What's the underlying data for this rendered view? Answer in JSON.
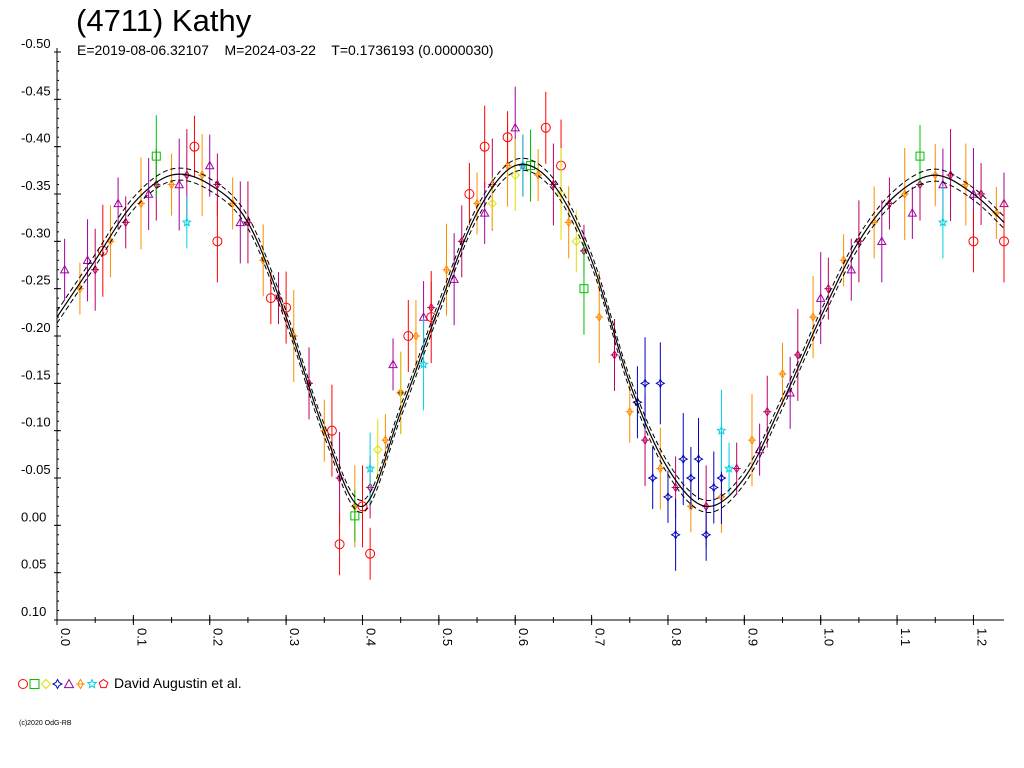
{
  "title": "(4711) Kathy",
  "subtitle": {
    "epoch": "E=2019-08-06.32107",
    "modified": "M=2024-03-22",
    "period": "T=0.1736193 (0.0000030)"
  },
  "legend": {
    "label": "David Augustin et al.",
    "markers": [
      {
        "shape": "circle",
        "color": "#ff0000"
      },
      {
        "shape": "square",
        "color": "#00c000"
      },
      {
        "shape": "diamond",
        "color": "#e0e000"
      },
      {
        "shape": "star4",
        "color": "#0000c0"
      },
      {
        "shape": "triangle",
        "color": "#a000a0"
      },
      {
        "shape": "diamond-cross",
        "color": "#ff8c00"
      },
      {
        "shape": "star",
        "color": "#00d0e0"
      },
      {
        "shape": "pentagon",
        "color": "#ff0000"
      }
    ]
  },
  "copyright": "(c)2020 OdG-RB",
  "chart_data": {
    "type": "scatter",
    "title": "(4711) Kathy",
    "xlabel": "",
    "ylabel": "",
    "xlim": [
      0.0,
      1.24
    ],
    "ylim": [
      -0.5,
      0.1
    ],
    "y_inverted": true,
    "x_ticks": [
      "0.0",
      "0.1",
      "0.2",
      "0.3",
      "0.4",
      "0.5",
      "0.6",
      "0.7",
      "0.8",
      "0.9",
      "1.0",
      "1.1",
      "1.2"
    ],
    "y_ticks": [
      "-0.50",
      "-0.45",
      "-0.40",
      "-0.35",
      "-0.30",
      "-0.25",
      "-0.20",
      "-0.15",
      "-0.10",
      "-0.05",
      "0.00",
      "0.05",
      "0.10"
    ],
    "grid": false,
    "legend_position": "bottom-left",
    "fit_curve": {
      "x": [
        0.0,
        0.05,
        0.1,
        0.15,
        0.2,
        0.25,
        0.3,
        0.35,
        0.4,
        0.45,
        0.5,
        0.55,
        0.6,
        0.65,
        0.7,
        0.75,
        0.8,
        0.85,
        0.9,
        0.95,
        1.0,
        1.05,
        1.1,
        1.15,
        1.2,
        1.24
      ],
      "y": [
        -0.22,
        -0.28,
        -0.34,
        -0.37,
        -0.36,
        -0.32,
        -0.22,
        -0.1,
        -0.02,
        -0.12,
        -0.23,
        -0.33,
        -0.38,
        -0.36,
        -0.28,
        -0.15,
        -0.06,
        -0.02,
        -0.05,
        -0.13,
        -0.22,
        -0.3,
        -0.35,
        -0.37,
        -0.35,
        -0.32
      ]
    },
    "series": [
      {
        "name": "",
        "color": "#ff8c00",
        "marker": "diamond-cross",
        "x": [
          0.03,
          0.07,
          0.11,
          0.15,
          0.19,
          0.23,
          0.27,
          0.31,
          0.35,
          0.39,
          0.43,
          0.47,
          0.51,
          0.55,
          0.59,
          0.63,
          0.67,
          0.71,
          0.75,
          0.79,
          0.83,
          0.87,
          0.91,
          0.95,
          0.99,
          1.03,
          1.07,
          1.11,
          1.15,
          1.19,
          1.23
        ],
        "y": [
          -0.25,
          -0.3,
          -0.34,
          -0.36,
          -0.37,
          -0.34,
          -0.28,
          -0.2,
          -0.1,
          -0.02,
          -0.09,
          -0.2,
          -0.27,
          -0.34,
          -0.38,
          -0.37,
          -0.32,
          -0.22,
          -0.12,
          -0.06,
          -0.02,
          -0.03,
          -0.09,
          -0.16,
          -0.22,
          -0.28,
          -0.32,
          -0.35,
          -0.37,
          -0.36,
          -0.33
        ]
      },
      {
        "name": "",
        "color": "#c00060",
        "marker": "diamond-cross",
        "x": [
          0.05,
          0.09,
          0.13,
          0.17,
          0.21,
          0.25,
          0.29,
          0.33,
          0.37,
          0.41,
          0.45,
          0.49,
          0.53,
          0.57,
          0.61,
          0.65,
          0.69,
          0.73,
          0.77,
          0.81,
          0.85,
          0.89,
          0.93,
          0.97,
          1.01,
          1.05,
          1.09,
          1.13,
          1.17,
          1.21
        ],
        "y": [
          -0.27,
          -0.32,
          -0.36,
          -0.37,
          -0.36,
          -0.32,
          -0.24,
          -0.15,
          -0.05,
          -0.04,
          -0.14,
          -0.23,
          -0.3,
          -0.36,
          -0.38,
          -0.36,
          -0.29,
          -0.18,
          -0.09,
          -0.04,
          -0.02,
          -0.06,
          -0.12,
          -0.18,
          -0.25,
          -0.3,
          -0.34,
          -0.36,
          -0.37,
          -0.35
        ]
      },
      {
        "name": "",
        "color": "#a000a0",
        "marker": "triangle",
        "x": [
          0.01,
          0.04,
          0.08,
          0.12,
          0.16,
          0.2,
          0.24,
          0.44,
          0.48,
          0.52,
          0.56,
          0.6,
          0.92,
          0.96,
          1.0,
          1.04,
          1.08,
          1.12,
          1.16,
          1.2,
          1.24
        ],
        "y": [
          -0.27,
          -0.28,
          -0.34,
          -0.35,
          -0.36,
          -0.38,
          -0.32,
          -0.17,
          -0.22,
          -0.26,
          -0.33,
          -0.42,
          -0.08,
          -0.14,
          -0.24,
          -0.27,
          -0.3,
          -0.33,
          -0.36,
          -0.35,
          -0.34
        ]
      },
      {
        "name": "",
        "color": "#ff0000",
        "marker": "circle",
        "x": [
          0.06,
          0.18,
          0.21,
          0.28,
          0.3,
          0.36,
          0.37,
          0.4,
          0.41,
          0.46,
          0.49,
          0.54,
          0.56,
          0.59,
          0.64,
          0.66,
          1.2,
          1.24
        ],
        "y": [
          -0.29,
          -0.4,
          -0.3,
          -0.24,
          -0.23,
          -0.1,
          0.02,
          -0.02,
          0.03,
          -0.2,
          -0.22,
          -0.35,
          -0.4,
          -0.41,
          -0.42,
          -0.38,
          -0.3,
          -0.3
        ]
      },
      {
        "name": "",
        "color": "#0000c0",
        "marker": "star4",
        "x": [
          0.76,
          0.77,
          0.78,
          0.79,
          0.8,
          0.81,
          0.82,
          0.83,
          0.84,
          0.85,
          0.86,
          0.87
        ],
        "y": [
          -0.13,
          -0.15,
          -0.05,
          -0.15,
          -0.03,
          0.01,
          -0.07,
          -0.05,
          -0.07,
          0.01,
          -0.04,
          -0.05
        ]
      },
      {
        "name": "",
        "color": "#00d0e0",
        "marker": "star",
        "x": [
          0.17,
          0.41,
          0.48,
          0.61,
          0.87,
          0.88,
          1.16
        ],
        "y": [
          -0.32,
          -0.06,
          -0.17,
          -0.38,
          -0.1,
          -0.06,
          -0.32
        ]
      },
      {
        "name": "",
        "color": "#00c000",
        "marker": "square",
        "x": [
          0.13,
          0.39,
          0.62,
          0.69,
          1.13
        ],
        "y": [
          -0.39,
          -0.01,
          -0.38,
          -0.25,
          -0.39
        ]
      },
      {
        "name": "",
        "color": "#e0e000",
        "marker": "diamond",
        "x": [
          0.42,
          0.45,
          0.57,
          0.6,
          0.66,
          0.68
        ],
        "y": [
          -0.08,
          -0.14,
          -0.34,
          -0.37,
          -0.35,
          -0.3
        ]
      }
    ]
  }
}
